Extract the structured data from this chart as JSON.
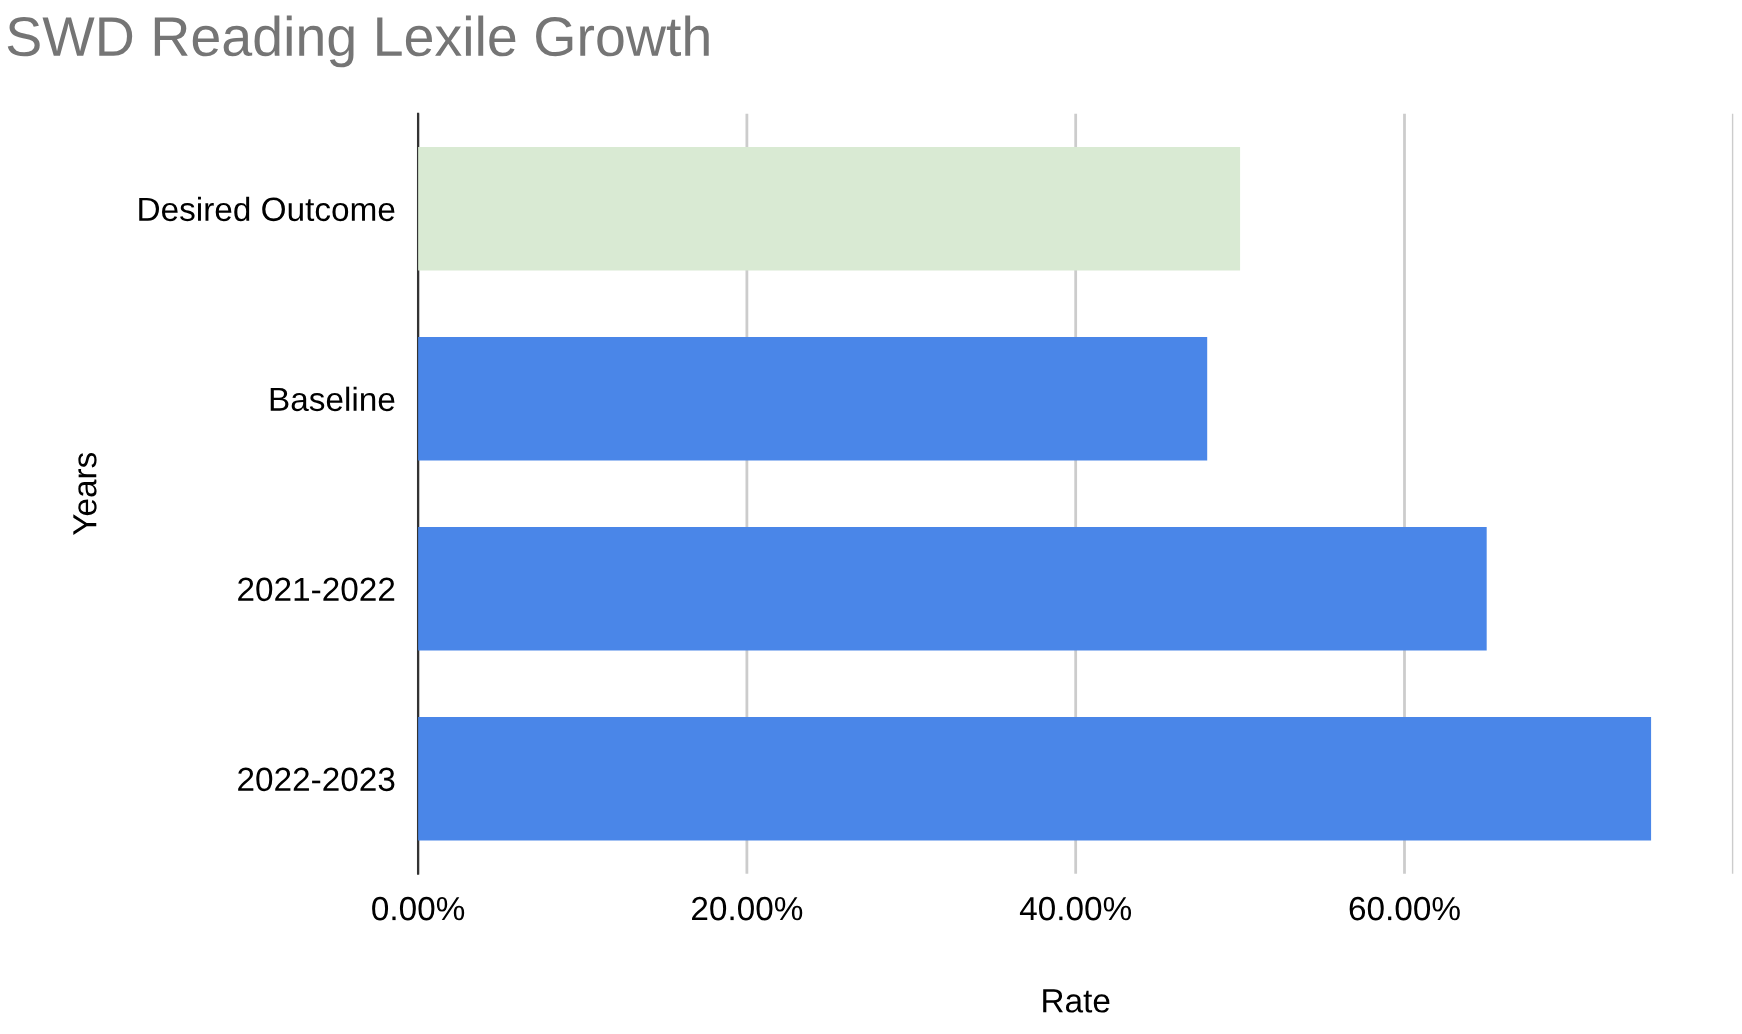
{
  "chart_data": {
    "type": "bar",
    "orientation": "horizontal",
    "title": "SWD Reading Lexile Growth",
    "xlabel": "Rate",
    "ylabel": "Years",
    "categories": [
      "Desired Outcome",
      "Baseline",
      "2021-2022",
      "2022-2023"
    ],
    "values": [
      50,
      48,
      65,
      75
    ],
    "colors": [
      "#d9ead3",
      "#4a86e8",
      "#4a86e8",
      "#4a86e8"
    ],
    "xlim": [
      0,
      80
    ],
    "xticks": [
      {
        "value": 0,
        "label": "0.00%"
      },
      {
        "value": 20,
        "label": "20.00%"
      },
      {
        "value": 40,
        "label": "40.00%"
      },
      {
        "value": 60,
        "label": "60.00%"
      },
      {
        "value": 80,
        "label": null
      }
    ],
    "grid": "x",
    "legend": false
  }
}
